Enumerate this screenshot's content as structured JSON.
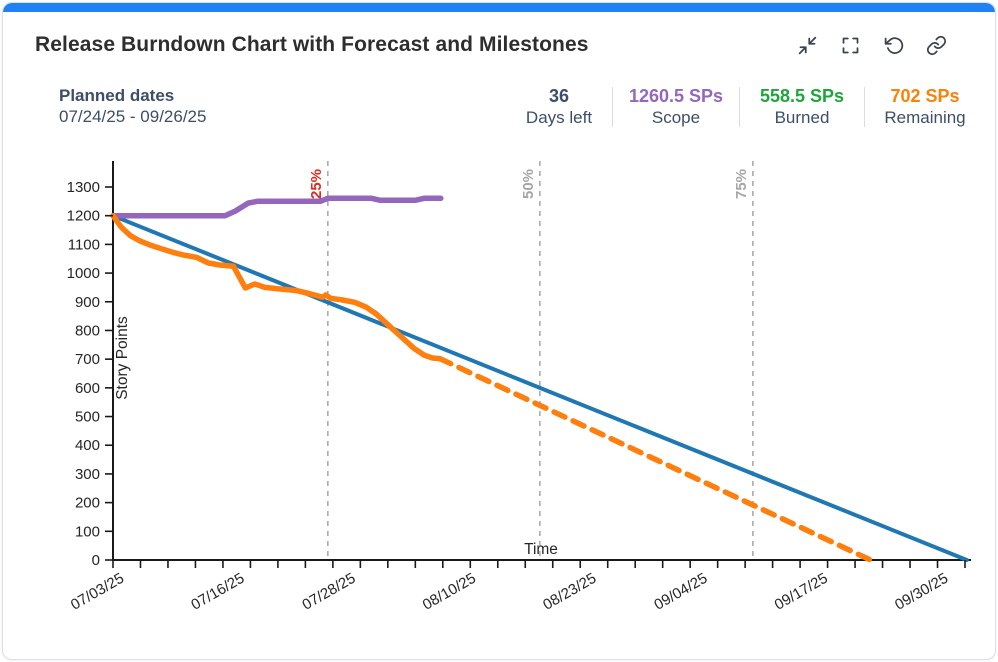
{
  "header": {
    "title": "Release Burndown Chart with Forecast and Milestones"
  },
  "toolbar": {
    "icons": [
      "collapse-icon",
      "fullscreen-icon",
      "reset-icon",
      "link-icon"
    ]
  },
  "summary": {
    "planned_dates": {
      "label": "Planned dates",
      "value": "07/24/25 - 09/26/25"
    },
    "stats": [
      {
        "value": "36",
        "label": "Days left",
        "color": "#3d4e6b"
      },
      {
        "value": "1260.5 SPs",
        "label": "Scope",
        "color": "#9467bd"
      },
      {
        "value": "558.5 SPs",
        "label": "Burned",
        "color": "#1ea53c"
      },
      {
        "value": "702 SPs",
        "label": "Remaining",
        "color": "#f98207"
      }
    ]
  },
  "chart_data": {
    "type": "line",
    "title": "Release Burndown Chart with Forecast and Milestones",
    "xlabel": "Time",
    "ylabel": "Story Points",
    "x_unit": "days since 07/03/25",
    "xlim": [
      0,
      92.2
    ],
    "ylim": [
      0,
      1390
    ],
    "grid": false,
    "legend": "none",
    "y_ticks": [
      0,
      100,
      200,
      300,
      400,
      500,
      600,
      700,
      800,
      900,
      1000,
      1100,
      1200,
      1300
    ],
    "x_ticks": [
      {
        "label": "07/03/25",
        "day": 0
      },
      {
        "label": "07/16/25",
        "day": 13
      },
      {
        "label": "07/28/25",
        "day": 25
      },
      {
        "label": "08/10/25",
        "day": 38
      },
      {
        "label": "08/23/25",
        "day": 51
      },
      {
        "label": "09/04/25",
        "day": 63
      },
      {
        "label": "09/17/25",
        "day": 76
      },
      {
        "label": "09/30/25",
        "day": 89
      }
    ],
    "milestones": [
      {
        "label": "25%",
        "day": 23.2,
        "label_color": "#e02b20"
      },
      {
        "label": "50%",
        "day": 46.1,
        "label_color": "#a6a6a6"
      },
      {
        "label": "75%",
        "day": 69.1,
        "label_color": "#a6a6a6"
      }
    ],
    "series": [
      {
        "name": "Ideal",
        "color": "#1f77b4",
        "style": "solid",
        "width": 4,
        "points": [
          [
            0,
            1200
          ],
          [
            92.2,
            0
          ]
        ]
      },
      {
        "name": "Scope",
        "color": "#9467bd",
        "style": "solid",
        "width": 5.5,
        "points": [
          [
            0,
            1200
          ],
          [
            12.1,
            1200
          ],
          [
            13.2,
            1216
          ],
          [
            14.6,
            1244
          ],
          [
            15.6,
            1250
          ],
          [
            22.4,
            1250
          ],
          [
            23.2,
            1260.5
          ],
          [
            27.9,
            1260.5
          ],
          [
            28.8,
            1254
          ],
          [
            32.7,
            1254
          ],
          [
            33.6,
            1260.5
          ],
          [
            35.4,
            1260.5
          ]
        ]
      },
      {
        "name": "Remaining",
        "color": "#ff7f0e",
        "style": "solid",
        "width": 5.5,
        "points": [
          [
            0,
            1200
          ],
          [
            0.9,
            1160
          ],
          [
            1.9,
            1130
          ],
          [
            2.9,
            1112
          ],
          [
            4,
            1098
          ],
          [
            5.2,
            1085
          ],
          [
            6.5,
            1072
          ],
          [
            7.6,
            1063
          ],
          [
            9,
            1055
          ],
          [
            10.3,
            1035
          ],
          [
            11.5,
            1028
          ],
          [
            13,
            1024
          ],
          [
            13.7,
            983
          ],
          [
            14.3,
            948
          ],
          [
            15.3,
            962
          ],
          [
            16.4,
            950
          ],
          [
            17.6,
            946
          ],
          [
            18.9,
            942
          ],
          [
            20,
            938
          ],
          [
            21,
            930
          ],
          [
            22,
            922
          ],
          [
            22.6,
            916
          ],
          [
            23,
            924
          ],
          [
            23.5,
            912
          ],
          [
            24.8,
            906
          ],
          [
            26.1,
            898
          ],
          [
            27.3,
            882
          ],
          [
            28.4,
            858
          ],
          [
            29.3,
            832
          ],
          [
            30.3,
            802
          ],
          [
            31.4,
            770
          ],
          [
            32.5,
            738
          ],
          [
            33.6,
            714
          ],
          [
            34.5,
            704
          ],
          [
            35.3,
            702
          ]
        ]
      },
      {
        "name": "Forecast",
        "color": "#ff7f0e",
        "style": "dashed",
        "width": 5.5,
        "points": [
          [
            35.3,
            702
          ],
          [
            81.8,
            0
          ]
        ]
      }
    ]
  }
}
